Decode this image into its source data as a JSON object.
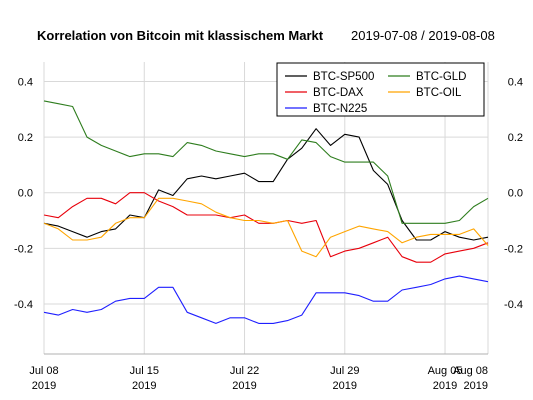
{
  "chart_data": {
    "type": "line",
    "title": "Korrelation von Bitcoin mit klassischem Markt",
    "date_range": "2019-07-08 / 2019-08-08",
    "x": [
      "2019-07-08",
      "2019-07-09",
      "2019-07-10",
      "2019-07-11",
      "2019-07-12",
      "2019-07-13",
      "2019-07-14",
      "2019-07-15",
      "2019-07-16",
      "2019-07-17",
      "2019-07-18",
      "2019-07-19",
      "2019-07-20",
      "2019-07-21",
      "2019-07-22",
      "2019-07-23",
      "2019-07-24",
      "2019-07-25",
      "2019-07-26",
      "2019-07-27",
      "2019-07-28",
      "2019-07-29",
      "2019-07-30",
      "2019-07-31",
      "2019-08-01",
      "2019-08-02",
      "2019-08-03",
      "2019-08-04",
      "2019-08-05",
      "2019-08-06",
      "2019-08-07",
      "2019-08-08"
    ],
    "x_ticks": [
      {
        "date": "2019-07-08",
        "label": "Jul 08",
        "year": "2019"
      },
      {
        "date": "2019-07-15",
        "label": "Jul 15",
        "year": "2019"
      },
      {
        "date": "2019-07-22",
        "label": "Jul 22",
        "year": "2019"
      },
      {
        "date": "2019-07-29",
        "label": "Jul 29",
        "year": "2019"
      },
      {
        "date": "2019-08-05",
        "label": "Aug 05",
        "year": "2019"
      },
      {
        "date": "2019-08-08",
        "label": "Aug 08",
        "year": "2019"
      }
    ],
    "y_ticks": [
      -0.4,
      -0.2,
      0.0,
      0.2,
      0.4
    ],
    "y_tick_labels": [
      "-0.4",
      "-0.2",
      "0.0",
      "0.2",
      "0.4"
    ],
    "ylim": [
      -0.58,
      0.47
    ],
    "grid": true,
    "legend_position": "top-right",
    "series": [
      {
        "name": "BTC-SP500",
        "color": "#000000",
        "values": [
          -0.11,
          -0.12,
          -0.14,
          -0.16,
          -0.14,
          -0.13,
          -0.08,
          -0.09,
          0.01,
          -0.01,
          0.05,
          0.06,
          0.05,
          0.06,
          0.07,
          0.04,
          0.04,
          0.12,
          0.16,
          0.23,
          0.17,
          0.21,
          0.2,
          0.08,
          0.03,
          -0.1,
          -0.17,
          -0.17,
          -0.14,
          -0.16,
          -0.17,
          -0.16
        ]
      },
      {
        "name": "BTC-DAX",
        "color": "#e8000b",
        "values": [
          -0.08,
          -0.09,
          -0.05,
          -0.02,
          -0.02,
          -0.04,
          0.0,
          0.0,
          -0.03,
          -0.05,
          -0.08,
          -0.08,
          -0.08,
          -0.09,
          -0.08,
          -0.11,
          -0.11,
          -0.1,
          -0.11,
          -0.1,
          -0.23,
          -0.21,
          -0.2,
          -0.18,
          -0.16,
          -0.23,
          -0.25,
          -0.25,
          -0.22,
          -0.21,
          -0.2,
          -0.18
        ]
      },
      {
        "name": "BTC-N225",
        "color": "#1f1fff",
        "values": [
          -0.43,
          -0.44,
          -0.42,
          -0.43,
          -0.42,
          -0.39,
          -0.38,
          -0.38,
          -0.34,
          -0.34,
          -0.43,
          -0.45,
          -0.47,
          -0.45,
          -0.45,
          -0.47,
          -0.47,
          -0.46,
          -0.44,
          -0.36,
          -0.36,
          -0.36,
          -0.37,
          -0.39,
          -0.39,
          -0.35,
          -0.34,
          -0.33,
          -0.31,
          -0.3,
          -0.31,
          -0.32
        ]
      },
      {
        "name": "BTC-GLD",
        "color": "#2e7d1e",
        "values": [
          0.33,
          0.32,
          0.31,
          0.2,
          0.17,
          0.15,
          0.13,
          0.14,
          0.14,
          0.13,
          0.18,
          0.17,
          0.15,
          0.14,
          0.13,
          0.14,
          0.14,
          0.12,
          0.19,
          0.18,
          0.13,
          0.11,
          0.11,
          0.11,
          0.06,
          -0.11,
          -0.11,
          -0.11,
          -0.11,
          -0.1,
          -0.05,
          -0.02
        ]
      },
      {
        "name": "BTC-OIL",
        "color": "#ffa500",
        "values": [
          -0.11,
          -0.13,
          -0.17,
          -0.17,
          -0.16,
          -0.11,
          -0.09,
          -0.09,
          -0.02,
          -0.02,
          -0.03,
          -0.04,
          -0.07,
          -0.09,
          -0.1,
          -0.1,
          -0.11,
          -0.1,
          -0.21,
          -0.23,
          -0.16,
          -0.14,
          -0.12,
          -0.13,
          -0.14,
          -0.18,
          -0.16,
          -0.15,
          -0.15,
          -0.15,
          -0.13,
          -0.19
        ]
      }
    ]
  }
}
